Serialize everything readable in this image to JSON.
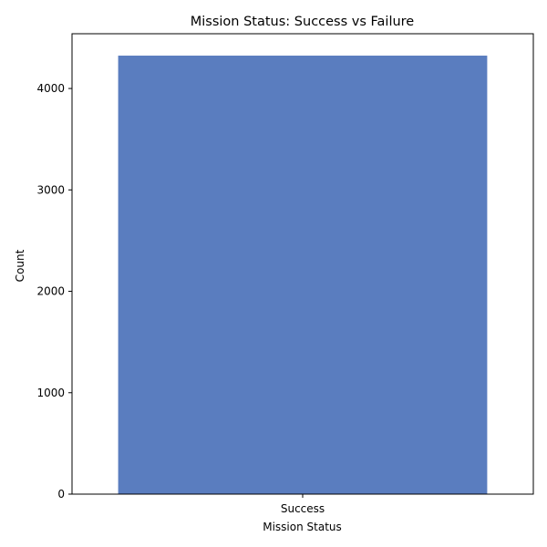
{
  "chart_data": {
    "type": "bar",
    "title": "Mission Status: Success vs Failure",
    "xlabel": "Mission Status",
    "ylabel": "Count",
    "categories": [
      "Success"
    ],
    "values": [
      4324
    ],
    "ylim": [
      0,
      4540
    ],
    "yticks": [
      0,
      1000,
      2000,
      3000,
      4000
    ],
    "grid": false,
    "bar_color": "#5a7dbf"
  }
}
